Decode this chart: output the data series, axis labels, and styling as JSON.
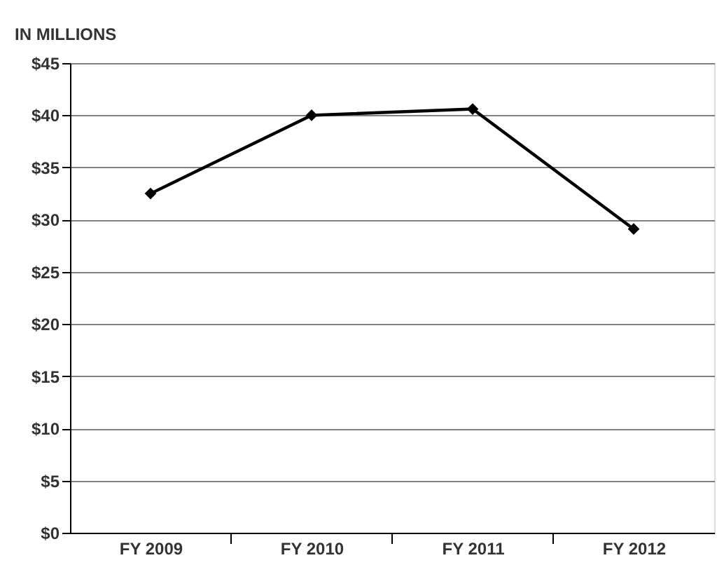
{
  "chart_data": {
    "type": "line",
    "ylabel": "IN MILLIONS",
    "categories": [
      "FY 2009",
      "FY 2010",
      "FY  2011",
      "FY 2012"
    ],
    "series": [
      {
        "color": "#000000",
        "values": [
          32.5,
          40,
          40.6,
          29.1
        ]
      }
    ],
    "ylim": [
      0,
      45
    ],
    "yticks": [
      {
        "value": 0,
        "label": "$0"
      },
      {
        "value": 5,
        "label": "$5"
      },
      {
        "value": 10,
        "label": "$10"
      },
      {
        "value": 15,
        "label": "$15"
      },
      {
        "value": 20,
        "label": "$20"
      },
      {
        "value": 25,
        "label": "$25"
      },
      {
        "value": 30,
        "label": "$30"
      },
      {
        "value": 35,
        "label": "$35"
      },
      {
        "value": 40,
        "label": "$40"
      },
      {
        "value": 45,
        "label": "$45"
      }
    ],
    "grid": "y",
    "marker": "diamond",
    "line_style": "solid"
  }
}
